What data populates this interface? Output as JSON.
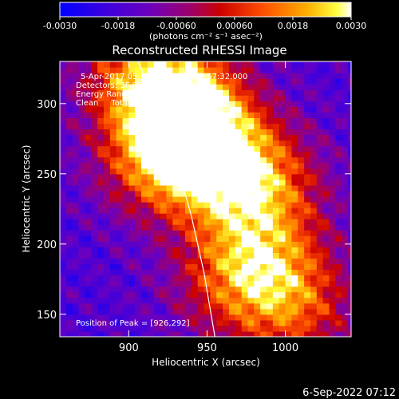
{
  "colorbar": {
    "tick_labels": [
      "-0.0030",
      "-0.0018",
      "-0.00060",
      "0.00060",
      "0.0018",
      "0.0030"
    ],
    "tick_values": [
      -0.003,
      -0.0018,
      -0.0006,
      0.0006,
      0.0018,
      0.003
    ],
    "units_label": "(photons cm⁻² s⁻¹ asec⁻²)",
    "range": [
      -0.003,
      0.003
    ]
  },
  "chart_data": {
    "type": "heatmap",
    "title": "Reconstructed RHESSI Image",
    "xlabel": "Heliocentric X (arcsec)",
    "ylabel": "Heliocentric Y (arcsec)",
    "xlim": [
      856,
      1042
    ],
    "ylim": [
      134,
      330
    ],
    "x_ticks": [
      900,
      950,
      1000
    ],
    "y_ticks": [
      150,
      200,
      250,
      300
    ],
    "colormap": "rainbow-to-hot (blue, purple, red, orange, yellow, white)",
    "annotations": {
      "time_range": "5-Apr-2017 05:51:32.000 to 05:57:32.000",
      "detectors": "Detectors: 3F 6F 8F, Att 0",
      "energy": "Energy Range: 12.0 - 25.0 keV",
      "clean": "Clean     Total counts: 1.65E+03",
      "peak": "Position of Peak = [926,292]"
    },
    "peak": {
      "x": 926,
      "y": 292
    },
    "limb": [
      [
        906,
        330
      ],
      [
        918,
        300
      ],
      [
        930,
        260
      ],
      [
        940,
        220
      ],
      [
        948,
        180
      ],
      [
        955,
        134
      ]
    ],
    "emission_blobs": [
      {
        "x": 930,
        "y": 300,
        "amp": 1.0
      },
      {
        "x": 940,
        "y": 270,
        "amp": 0.75
      },
      {
        "x": 915,
        "y": 255,
        "amp": 0.55
      },
      {
        "x": 960,
        "y": 255,
        "amp": 0.6
      },
      {
        "x": 985,
        "y": 240,
        "amp": 0.55
      },
      {
        "x": 975,
        "y": 200,
        "amp": 0.5
      },
      {
        "x": 990,
        "y": 175,
        "amp": 0.45
      },
      {
        "x": 1005,
        "y": 150,
        "amp": 0.5
      },
      {
        "x": 960,
        "y": 165,
        "amp": 0.35
      },
      {
        "x": 905,
        "y": 320,
        "amp": 0.6
      }
    ]
  },
  "footer": {
    "timestamp": "6-Sep-2022 07:12"
  }
}
